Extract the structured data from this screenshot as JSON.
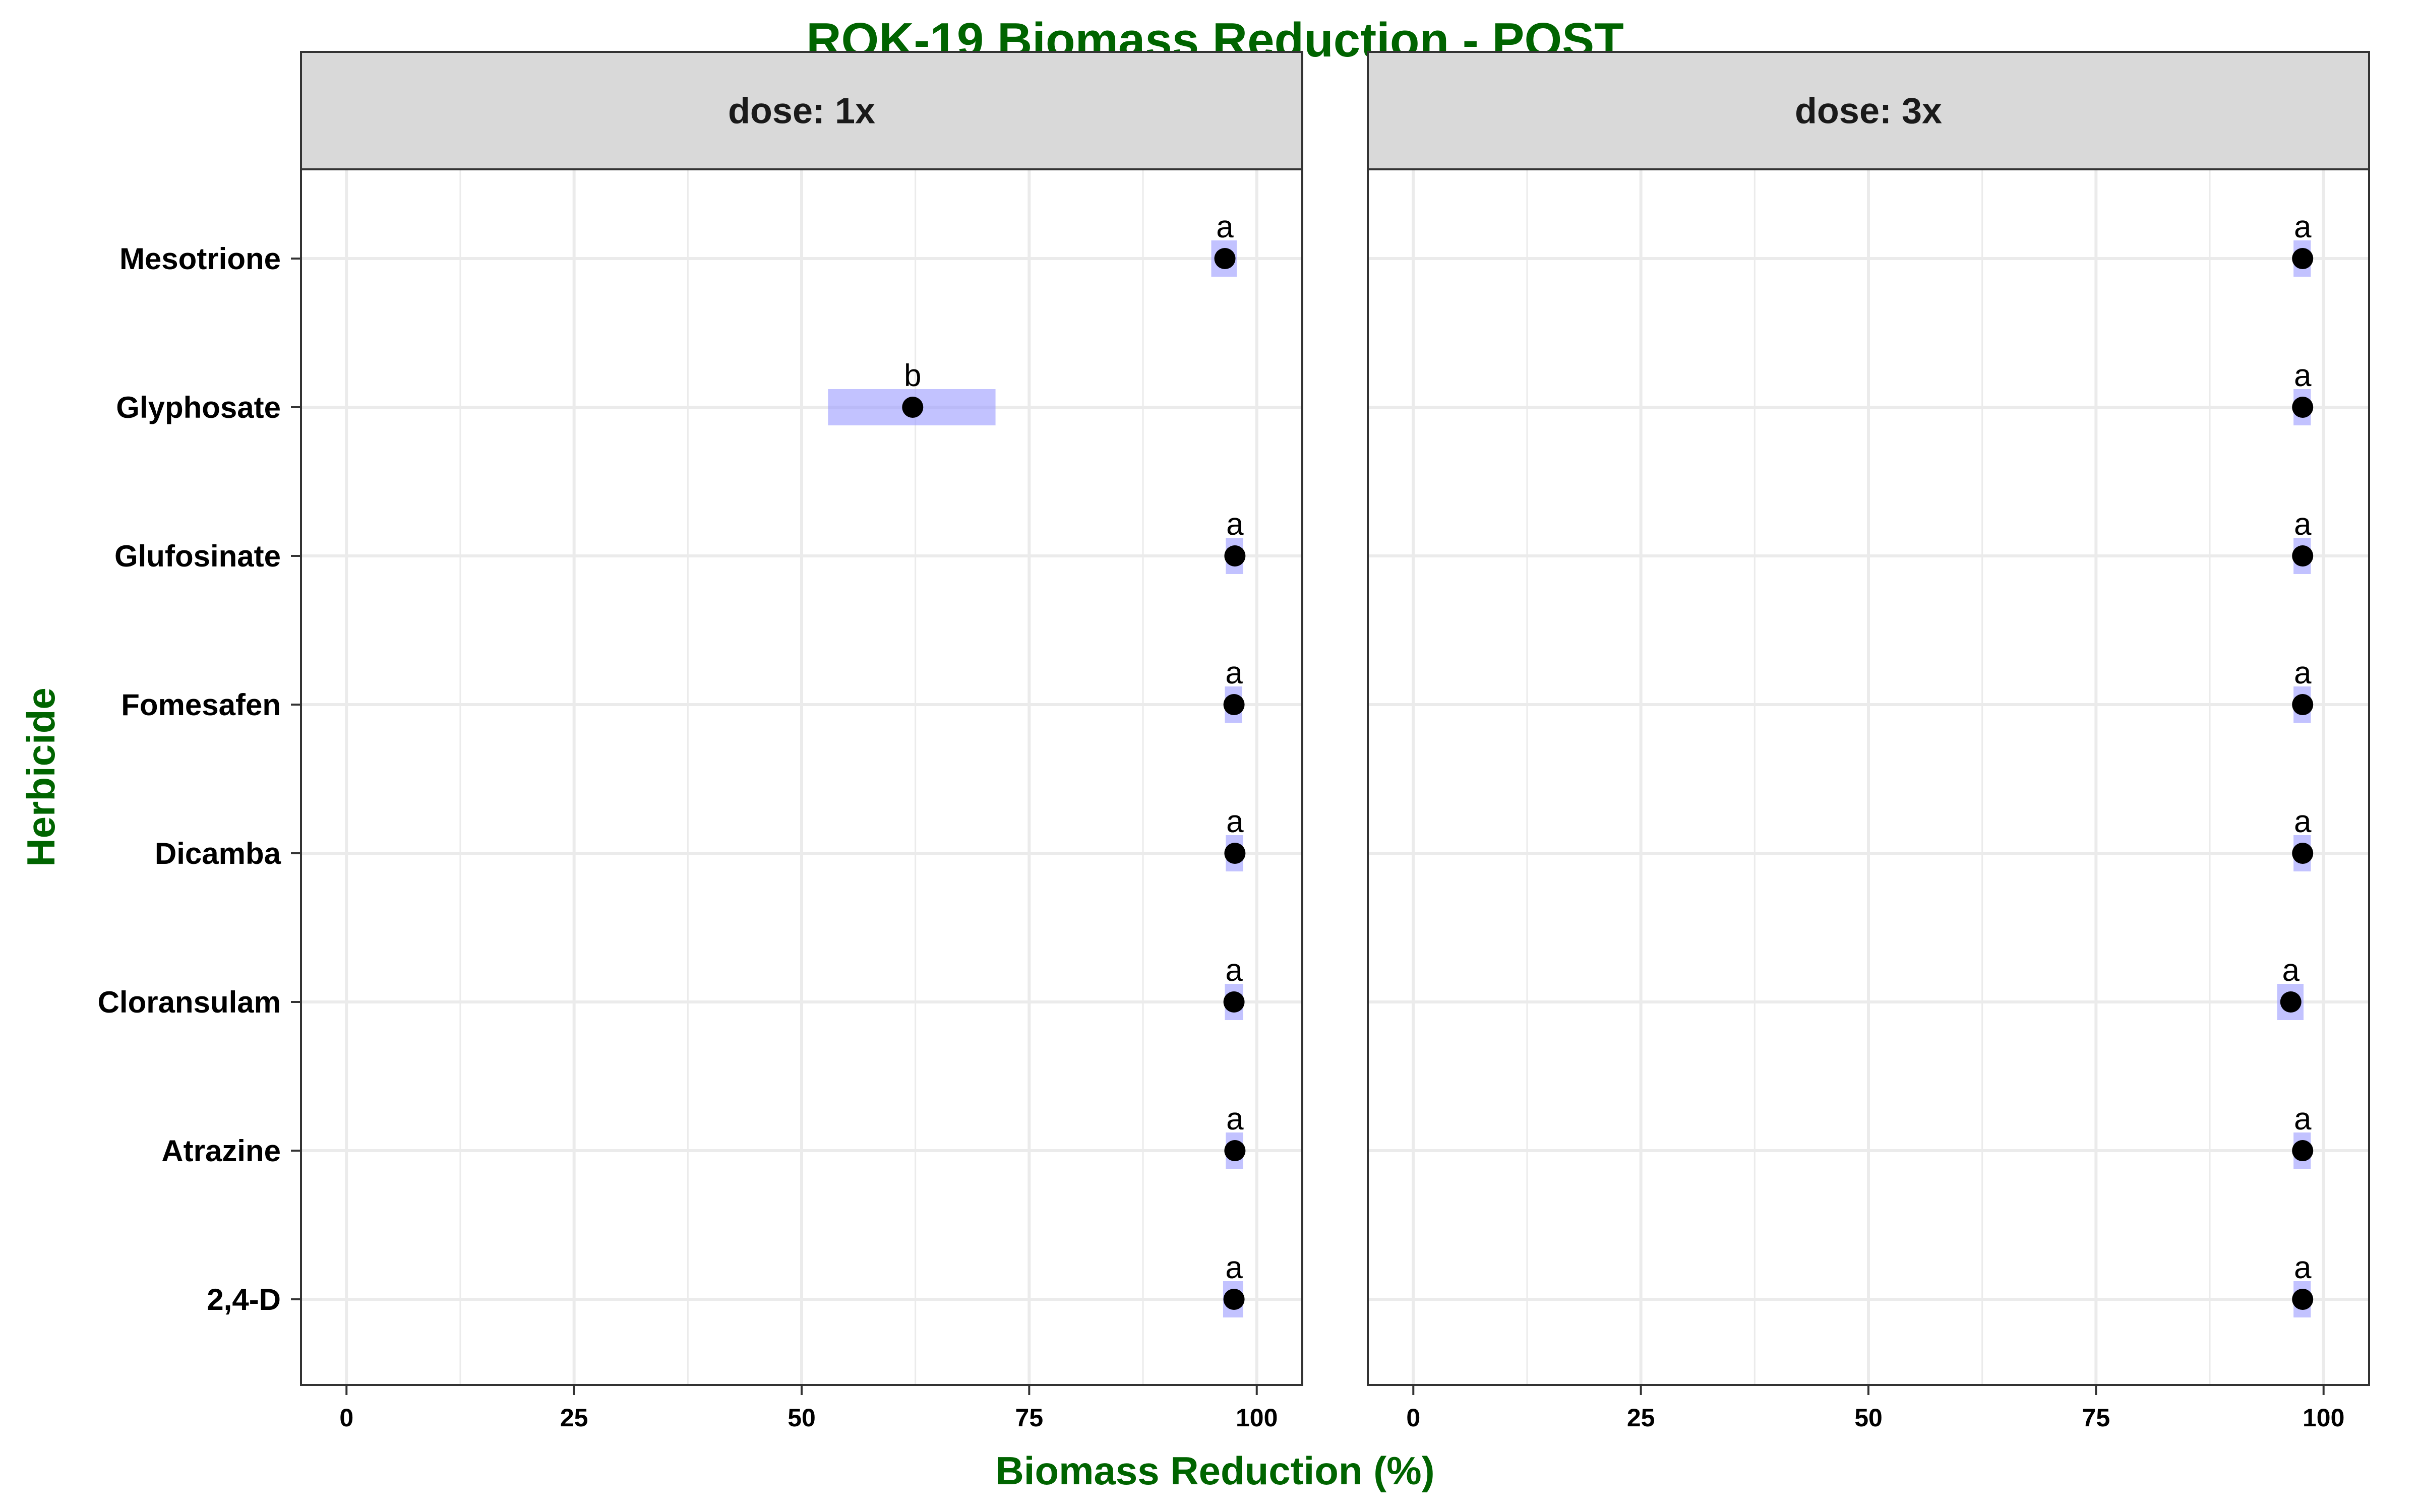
{
  "chart_data": {
    "type": "scatter",
    "title": "ROK-19 Biomass Reduction - POST",
    "xlabel": "Biomass Reduction (%)",
    "ylabel": "Herbicide",
    "xlim": [
      -5,
      105
    ],
    "x_ticks": [
      0,
      25,
      50,
      75,
      100
    ],
    "categories": [
      "Mesotrione",
      "Glyphosate",
      "Glufosinate",
      "Fomesafen",
      "Dicamba",
      "Cloransulam",
      "Atrazine",
      "2,4-D"
    ],
    "grid": true,
    "colors": {
      "point": "#000000",
      "interval": "#9999ff",
      "title": "#006400",
      "strip": "#d9d9d9",
      "grid": "#ebebeb"
    },
    "panels": [
      {
        "strip_label": "dose: 1x",
        "estimates": [
          96.5,
          62.2,
          97.6,
          97.5,
          97.6,
          97.5,
          97.6,
          97.5
        ],
        "lower": [
          95.0,
          52.9,
          96.6,
          96.5,
          96.6,
          96.5,
          96.6,
          96.3
        ],
        "upper": [
          97.8,
          71.3,
          98.5,
          98.4,
          98.5,
          98.5,
          98.5,
          98.5
        ],
        "letters": [
          "a",
          "b",
          "a",
          "a",
          "a",
          "a",
          "a",
          "a"
        ]
      },
      {
        "strip_label": "dose: 3x",
        "estimates": [
          97.7,
          97.7,
          97.7,
          97.7,
          97.7,
          96.4,
          97.7,
          97.7
        ],
        "lower": [
          96.7,
          96.7,
          96.7,
          96.7,
          96.7,
          94.9,
          96.7,
          96.7
        ],
        "upper": [
          98.6,
          98.6,
          98.6,
          98.6,
          98.6,
          97.8,
          98.6,
          98.6
        ],
        "letters": [
          "a",
          "a",
          "a",
          "a",
          "a",
          "a",
          "a",
          "a"
        ]
      }
    ]
  }
}
